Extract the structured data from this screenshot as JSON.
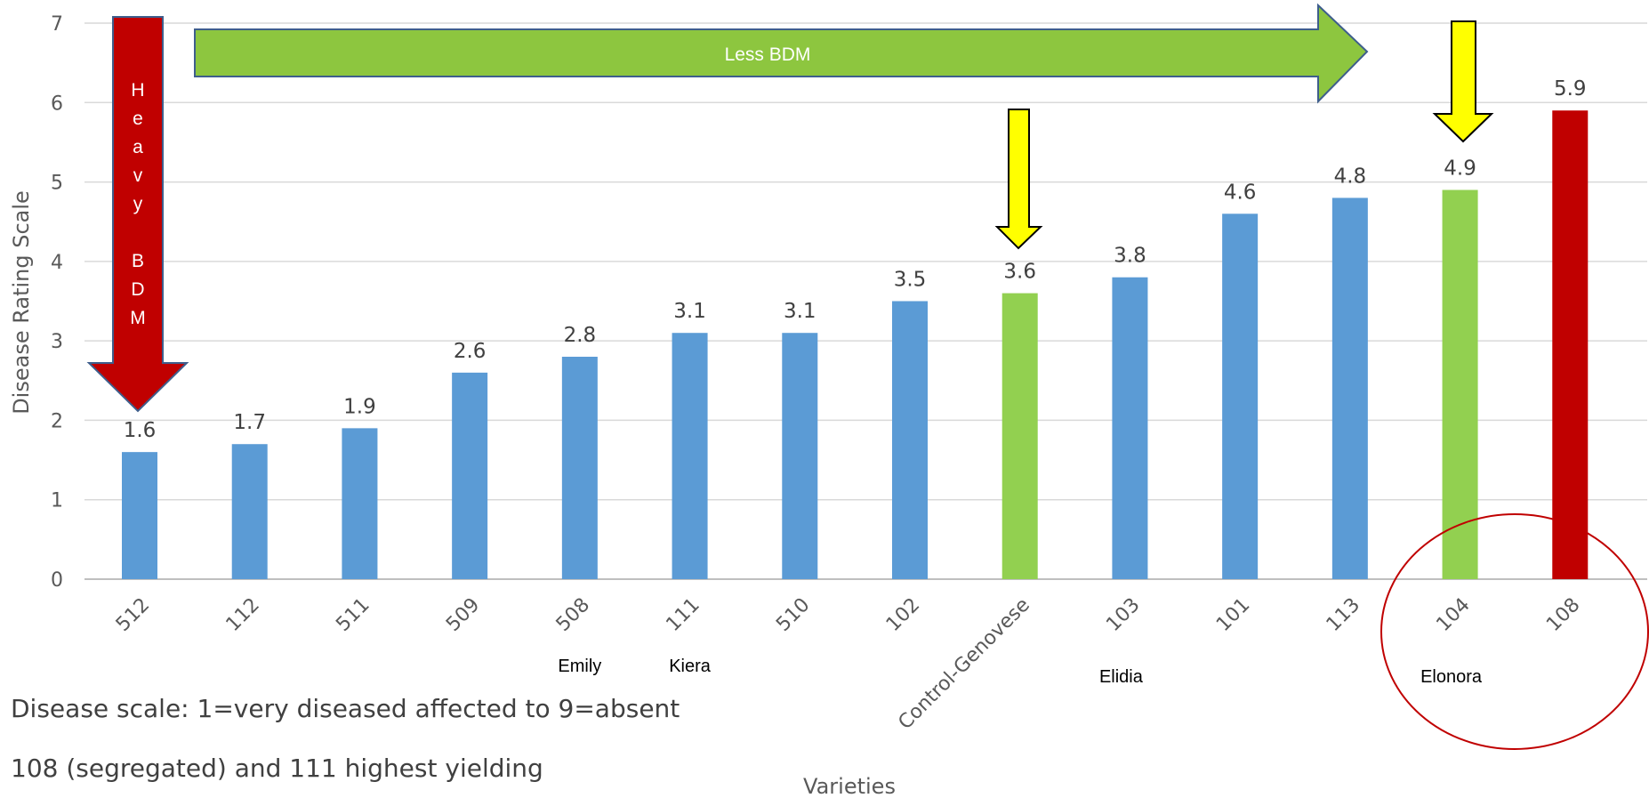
{
  "chart_data": {
    "type": "bar",
    "ylabel": "Disease Rating Scale",
    "xlabel": "Varieties",
    "ylim": [
      0,
      7
    ],
    "yticks": [
      0,
      1,
      2,
      3,
      4,
      5,
      6,
      7
    ],
    "grid": true,
    "categories": [
      "512",
      "112",
      "511",
      "509",
      "508",
      "111",
      "510",
      "102",
      "Control-Genovese",
      "103",
      "101",
      "113",
      "104",
      "108"
    ],
    "values": [
      1.6,
      1.7,
      1.9,
      2.6,
      2.8,
      3.1,
      3.1,
      3.5,
      3.6,
      3.8,
      4.6,
      4.8,
      4.9,
      5.9
    ],
    "bar_colors": [
      "#5B9BD5",
      "#5B9BD5",
      "#5B9BD5",
      "#5B9BD5",
      "#5B9BD5",
      "#5B9BD5",
      "#5B9BD5",
      "#5B9BD5",
      "#92D050",
      "#5B9BD5",
      "#5B9BD5",
      "#5B9BD5",
      "#92D050",
      "#C00000"
    ],
    "variety_names": [
      {
        "category": "508",
        "name": "Emily"
      },
      {
        "category": "111",
        "name": "Kiera"
      },
      {
        "category": "103",
        "name": "Elidia"
      },
      {
        "category": "104",
        "name": "Elonora"
      }
    ],
    "annotations": {
      "heavy_arrow_letters": [
        "H",
        "e",
        "a",
        "v",
        "y",
        "",
        "B",
        "D",
        "M"
      ],
      "heavy_arrow_color": "#C00000",
      "less_arrow_text": "Less BDM",
      "less_arrow_color": "#8DC63F",
      "highlight_arrow_color": "#FFFF00",
      "highlight_arrows_on": [
        "Control-Genovese",
        "104"
      ],
      "circle_around": [
        "104",
        "108"
      ],
      "circle_color": "#C00000"
    },
    "notes": [
      "Disease scale: 1=very diseased affected to 9=absent",
      "108 (segregated) and 111 highest yielding"
    ]
  }
}
